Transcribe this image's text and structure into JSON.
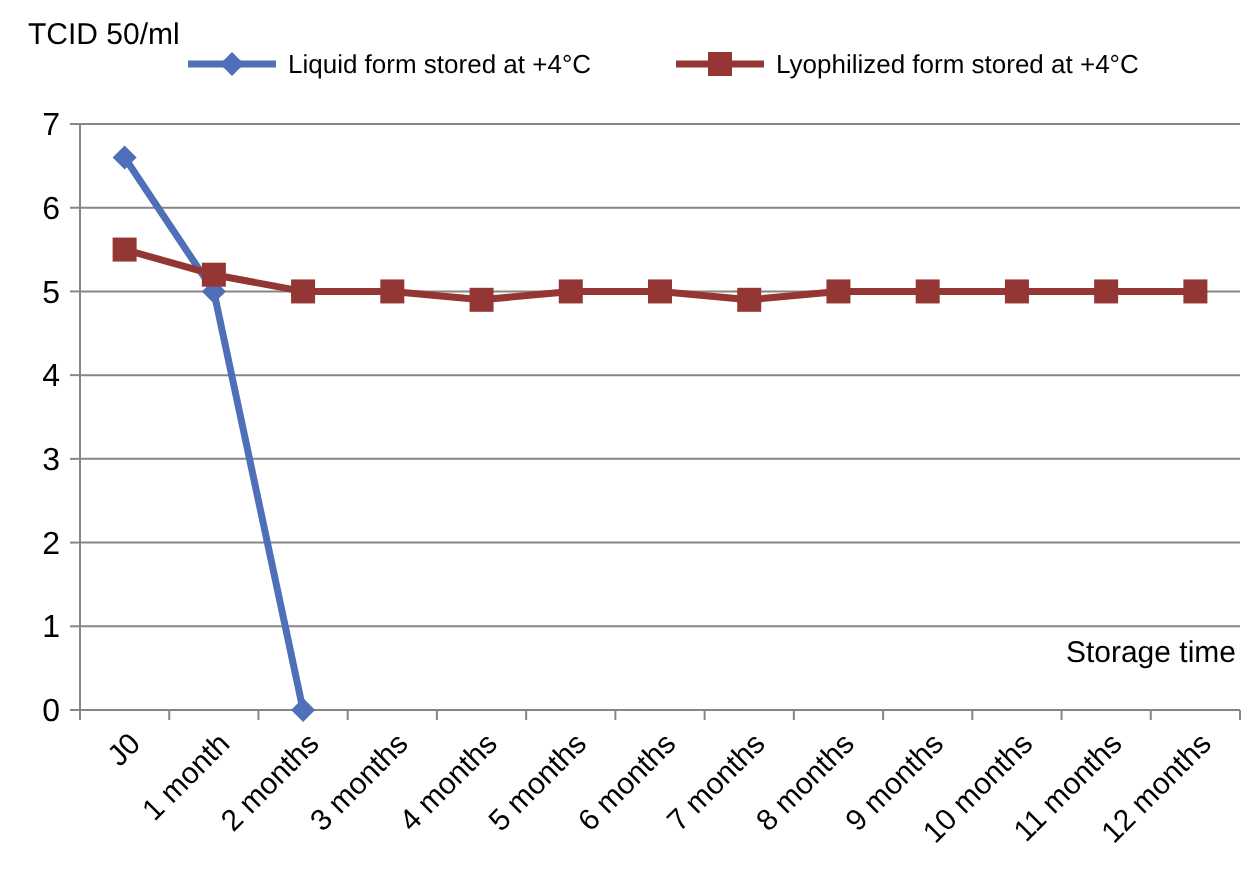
{
  "chart_data": {
    "type": "line",
    "ylabel": "TCID 50/ml",
    "xlabel": "Storage time",
    "categories": [
      "J0",
      "1 month",
      "2 months",
      "3 months",
      "4 months",
      "5 months",
      "6 months",
      "7 months",
      "8 months",
      "9 months",
      "10 months",
      "11 months",
      "12 months"
    ],
    "series": [
      {
        "name": "Liquid form stored at +4°C",
        "color": "#4f6fb8",
        "marker": "diamond",
        "values": [
          6.6,
          5.0,
          0,
          null,
          null,
          null,
          null,
          null,
          null,
          null,
          null,
          null,
          null
        ]
      },
      {
        "name": "Lyophilized form stored at +4°C",
        "color": "#943634",
        "marker": "square",
        "values": [
          5.5,
          5.2,
          5.0,
          5.0,
          4.9,
          5.0,
          5.0,
          4.9,
          5.0,
          5.0,
          5.0,
          5.0,
          5.0
        ]
      }
    ],
    "ylim": [
      0,
      7
    ],
    "yticks": [
      0,
      1,
      2,
      3,
      4,
      5,
      6,
      7
    ],
    "grid": "y",
    "legend": "top"
  }
}
